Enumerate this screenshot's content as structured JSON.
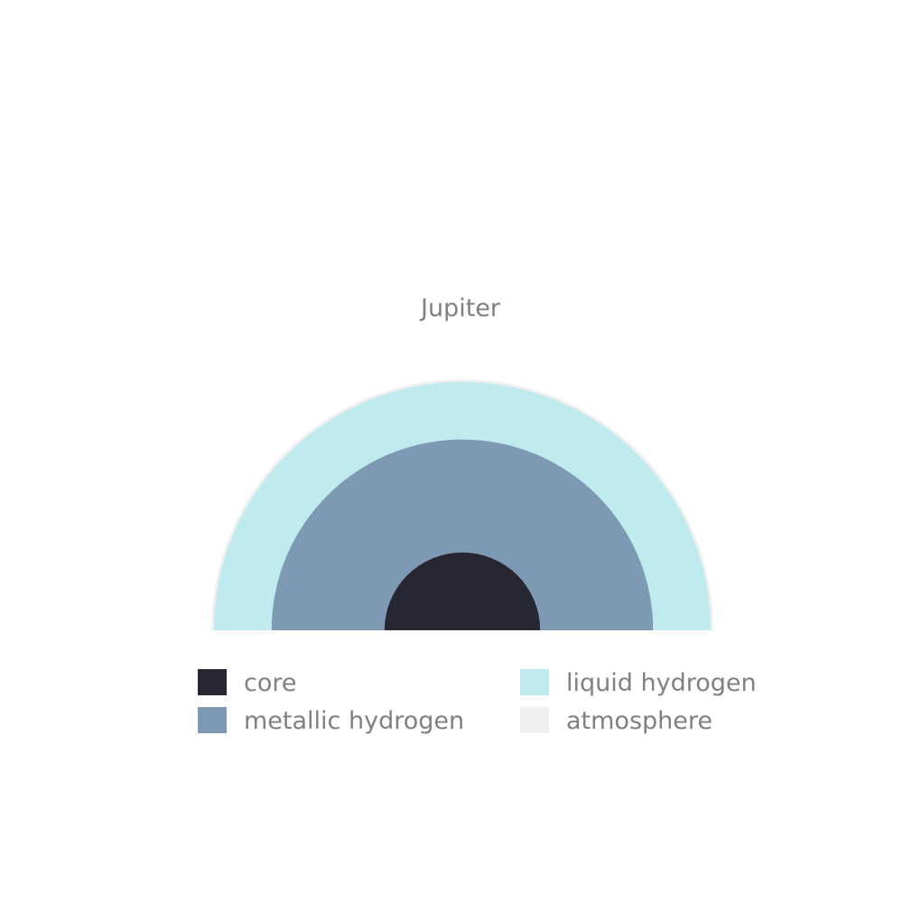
{
  "title": "Jupiter",
  "layers": [
    {
      "name": "atmosphere",
      "color": "#f0f0f0",
      "relative_radius": 1.0
    },
    {
      "name": "liquid hydrogen",
      "color": "#c0ebee",
      "relative_radius": 0.99
    },
    {
      "name": "metallic hydrogen",
      "color": "#7e99b3",
      "relative_radius": 0.76
    },
    {
      "name": "core",
      "color": "#272633",
      "relative_radius": 0.31
    }
  ],
  "legend": [
    {
      "label": "core",
      "color": "#272633"
    },
    {
      "label": "metallic hydrogen",
      "color": "#7e99b3"
    },
    {
      "label": "liquid hydrogen",
      "color": "#c0ebee"
    },
    {
      "label": "atmosphere",
      "color": "#f0f0f0"
    }
  ]
}
